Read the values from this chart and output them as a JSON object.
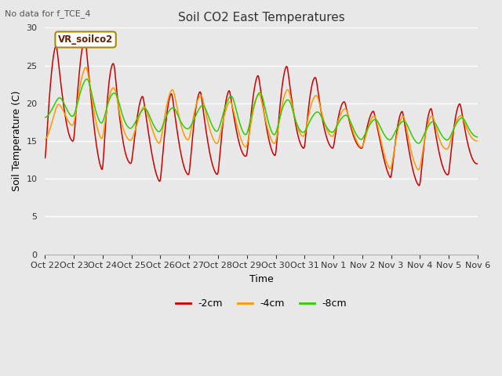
{
  "title": "Soil CO2 East Temperatures",
  "no_data_label": "No data for f_TCE_4",
  "ylabel": "Soil Temperature (C)",
  "xlabel": "Time",
  "ylim": [
    0,
    30
  ],
  "yticks": [
    0,
    5,
    10,
    15,
    20,
    25,
    30
  ],
  "fig_bg_color": "#e8e8e8",
  "plot_bg_color": "#e8e8e8",
  "grid_color": "#ffffff",
  "legend_label": "VR_soilco2",
  "series": [
    {
      "label": "-2cm",
      "color": "#cc0000"
    },
    {
      "label": "-4cm",
      "color": "#ff9900"
    },
    {
      "label": "-8cm",
      "color": "#33cc00"
    }
  ],
  "x_tick_labels": [
    "Oct 22",
    "Oct 23",
    "Oct 24",
    "Oct 25",
    "Oct 26",
    "Oct 27",
    "Oct 28",
    "Oct 29",
    "Oct 30",
    "Oct 31",
    "Nov 1",
    "Nov 2",
    "Nov 3",
    "Nov 4",
    "Nov 5",
    "Nov 6"
  ],
  "title_fontsize": 11,
  "axis_fontsize": 9,
  "tick_fontsize": 8,
  "red_peaks": [
    27,
    29,
    28,
    21,
    21,
    22,
    21,
    23,
    25,
    25,
    21,
    19,
    19,
    19,
    20,
    20
  ],
  "red_troughs": [
    12,
    15,
    11,
    12,
    9.5,
    10.5,
    10.5,
    13,
    13,
    14,
    14,
    14,
    10,
    9,
    10.5,
    12
  ],
  "orange_peaks": [
    16,
    25,
    25,
    18,
    22,
    22,
    20,
    21,
    22,
    22,
    20,
    18.5,
    18.5,
    18.5,
    18.5,
    18.5
  ],
  "orange_troughs": [
    15,
    17,
    15,
    15,
    14.5,
    15,
    14.5,
    14,
    14.5,
    15.5,
    15.5,
    14,
    11,
    11,
    14,
    15
  ],
  "green_peaks": [
    18.5,
    23.5,
    23.5,
    19,
    20,
    19,
    21,
    21.5,
    22,
    19,
    19,
    18,
    18,
    17.5,
    18,
    18.5
  ],
  "green_troughs": [
    18,
    18,
    17,
    16.5,
    16,
    16.5,
    16,
    15.5,
    15.5,
    16,
    16,
    15,
    15,
    14.5,
    15,
    15.5
  ]
}
